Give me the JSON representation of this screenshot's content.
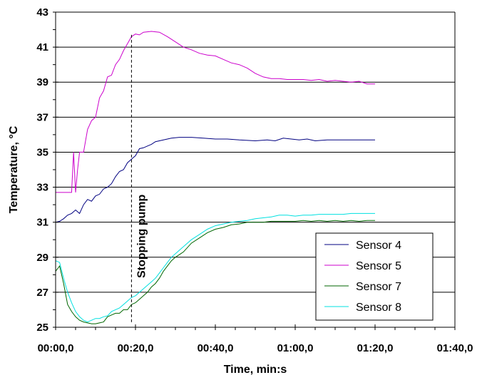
{
  "chart_data": {
    "type": "line",
    "xlabel": "Time, min:s",
    "ylabel": "Temperature, °C",
    "xlim": [
      0,
      100
    ],
    "ylim": [
      25,
      43
    ],
    "x_ticks": [
      0,
      20,
      40,
      60,
      80,
      100
    ],
    "x_tick_labels": [
      "00:00,0",
      "00:20,0",
      "00:40,0",
      "01:00,0",
      "01:20,0",
      "01:40,0"
    ],
    "y_ticks": [
      25,
      27,
      29,
      31,
      33,
      35,
      37,
      39,
      41,
      43
    ],
    "y_tick_labels": [
      "25",
      "27",
      "29",
      "31",
      "33",
      "35",
      "37",
      "39",
      "41",
      "43"
    ],
    "grid": "horizontal",
    "legend_position": "bottom-right",
    "annotation": {
      "text": "Stopping pump",
      "x": 19
    },
    "colors": {
      "sensor4": "#000080",
      "sensor5": "#cc00cc",
      "sensor7": "#006600",
      "sensor8": "#00e0e0"
    },
    "series": [
      {
        "name": "Sensor 4",
        "color": "#000080",
        "points": [
          [
            0,
            31.0
          ],
          [
            1,
            31.05
          ],
          [
            2,
            31.2
          ],
          [
            3,
            31.4
          ],
          [
            4,
            31.5
          ],
          [
            5,
            31.7
          ],
          [
            6,
            31.5
          ],
          [
            7,
            32.0
          ],
          [
            8,
            32.3
          ],
          [
            9,
            32.2
          ],
          [
            10,
            32.5
          ],
          [
            11,
            32.6
          ],
          [
            12,
            32.9
          ],
          [
            13,
            33.0
          ],
          [
            14,
            33.2
          ],
          [
            15,
            33.6
          ],
          [
            16,
            33.9
          ],
          [
            17,
            34.0
          ],
          [
            18,
            34.4
          ],
          [
            19,
            34.6
          ],
          [
            20,
            34.8
          ],
          [
            21,
            35.2
          ],
          [
            22,
            35.25
          ],
          [
            23,
            35.35
          ],
          [
            24,
            35.45
          ],
          [
            25,
            35.6
          ],
          [
            27,
            35.7
          ],
          [
            29,
            35.8
          ],
          [
            31,
            35.85
          ],
          [
            34,
            35.85
          ],
          [
            37,
            35.8
          ],
          [
            40,
            35.75
          ],
          [
            43,
            35.75
          ],
          [
            46,
            35.7
          ],
          [
            50,
            35.65
          ],
          [
            53,
            35.7
          ],
          [
            55,
            35.65
          ],
          [
            57,
            35.8
          ],
          [
            59,
            35.75
          ],
          [
            61,
            35.7
          ],
          [
            63,
            35.75
          ],
          [
            65,
            35.65
          ],
          [
            68,
            35.7
          ],
          [
            72,
            35.7
          ],
          [
            76,
            35.7
          ],
          [
            80,
            35.7
          ]
        ]
      },
      {
        "name": "Sensor 5",
        "color": "#cc00cc",
        "points": [
          [
            0,
            32.7
          ],
          [
            4,
            32.7
          ],
          [
            4.5,
            35.0
          ],
          [
            5,
            32.7
          ],
          [
            5.5,
            34.0
          ],
          [
            6,
            35.0
          ],
          [
            7,
            35.0
          ],
          [
            8,
            36.3
          ],
          [
            9,
            36.8
          ],
          [
            10,
            37.0
          ],
          [
            11,
            38.1
          ],
          [
            12,
            38.5
          ],
          [
            13,
            39.3
          ],
          [
            14,
            39.4
          ],
          [
            15,
            40.0
          ],
          [
            16,
            40.3
          ],
          [
            17,
            40.8
          ],
          [
            18,
            41.2
          ],
          [
            19,
            41.6
          ],
          [
            20,
            41.75
          ],
          [
            21,
            41.7
          ],
          [
            22,
            41.85
          ],
          [
            24,
            41.9
          ],
          [
            26,
            41.85
          ],
          [
            28,
            41.6
          ],
          [
            30,
            41.3
          ],
          [
            32,
            41.0
          ],
          [
            34,
            40.85
          ],
          [
            36,
            40.65
          ],
          [
            38,
            40.55
          ],
          [
            40,
            40.5
          ],
          [
            42,
            40.3
          ],
          [
            44,
            40.1
          ],
          [
            46,
            40.0
          ],
          [
            48,
            39.8
          ],
          [
            50,
            39.5
          ],
          [
            52,
            39.3
          ],
          [
            54,
            39.2
          ],
          [
            56,
            39.2
          ],
          [
            58,
            39.15
          ],
          [
            60,
            39.15
          ],
          [
            62,
            39.15
          ],
          [
            64,
            39.1
          ],
          [
            66,
            39.15
          ],
          [
            68,
            39.05
          ],
          [
            70,
            39.1
          ],
          [
            72,
            39.05
          ],
          [
            74,
            39.0
          ],
          [
            76,
            39.05
          ],
          [
            78,
            38.9
          ],
          [
            80,
            38.9
          ]
        ]
      },
      {
        "name": "Sensor 7",
        "color": "#006600",
        "points": [
          [
            0,
            28.2
          ],
          [
            1,
            28.5
          ],
          [
            2,
            27.5
          ],
          [
            3,
            26.3
          ],
          [
            4,
            25.9
          ],
          [
            5,
            25.6
          ],
          [
            6,
            25.4
          ],
          [
            7,
            25.3
          ],
          [
            8,
            25.25
          ],
          [
            9,
            25.2
          ],
          [
            10,
            25.2
          ],
          [
            11,
            25.25
          ],
          [
            12,
            25.3
          ],
          [
            13,
            25.6
          ],
          [
            14,
            25.7
          ],
          [
            15,
            25.8
          ],
          [
            16,
            25.8
          ],
          [
            17,
            26.0
          ],
          [
            18,
            26.0
          ],
          [
            19,
            26.3
          ],
          [
            20,
            26.4
          ],
          [
            21,
            26.6
          ],
          [
            22,
            26.8
          ],
          [
            23,
            27.0
          ],
          [
            24,
            27.3
          ],
          [
            25,
            27.5
          ],
          [
            26,
            27.8
          ],
          [
            27,
            28.2
          ],
          [
            28,
            28.5
          ],
          [
            29,
            28.8
          ],
          [
            30,
            29.0
          ],
          [
            32,
            29.3
          ],
          [
            34,
            29.8
          ],
          [
            36,
            30.1
          ],
          [
            38,
            30.4
          ],
          [
            40,
            30.6
          ],
          [
            42,
            30.7
          ],
          [
            44,
            30.85
          ],
          [
            46,
            30.9
          ],
          [
            48,
            31.0
          ],
          [
            50,
            31.0
          ],
          [
            52,
            31.0
          ],
          [
            54,
            31.05
          ],
          [
            56,
            31.05
          ],
          [
            58,
            31.05
          ],
          [
            60,
            31.05
          ],
          [
            62,
            31.1
          ],
          [
            64,
            31.05
          ],
          [
            66,
            31.1
          ],
          [
            68,
            31.05
          ],
          [
            70,
            31.1
          ],
          [
            72,
            31.05
          ],
          [
            74,
            31.1
          ],
          [
            76,
            31.05
          ],
          [
            78,
            31.1
          ],
          [
            80,
            31.1
          ]
        ]
      },
      {
        "name": "Sensor 8",
        "color": "#00e0e0",
        "points": [
          [
            0,
            28.8
          ],
          [
            1,
            28.7
          ],
          [
            2,
            27.8
          ],
          [
            3,
            27.0
          ],
          [
            4,
            26.4
          ],
          [
            5,
            25.9
          ],
          [
            6,
            25.6
          ],
          [
            7,
            25.4
          ],
          [
            8,
            25.3
          ],
          [
            9,
            25.4
          ],
          [
            10,
            25.5
          ],
          [
            11,
            25.5
          ],
          [
            12,
            25.6
          ],
          [
            13,
            25.65
          ],
          [
            14,
            25.9
          ],
          [
            15,
            26.0
          ],
          [
            16,
            26.1
          ],
          [
            17,
            26.3
          ],
          [
            18,
            26.5
          ],
          [
            19,
            26.7
          ],
          [
            20,
            26.8
          ],
          [
            21,
            27.0
          ],
          [
            22,
            27.2
          ],
          [
            23,
            27.4
          ],
          [
            24,
            27.6
          ],
          [
            25,
            27.8
          ],
          [
            26,
            28.1
          ],
          [
            27,
            28.4
          ],
          [
            28,
            28.7
          ],
          [
            29,
            29.0
          ],
          [
            30,
            29.2
          ],
          [
            32,
            29.6
          ],
          [
            34,
            30.0
          ],
          [
            36,
            30.3
          ],
          [
            38,
            30.6
          ],
          [
            40,
            30.8
          ],
          [
            42,
            30.9
          ],
          [
            44,
            31.0
          ],
          [
            46,
            31.05
          ],
          [
            48,
            31.1
          ],
          [
            50,
            31.2
          ],
          [
            52,
            31.25
          ],
          [
            54,
            31.3
          ],
          [
            56,
            31.4
          ],
          [
            58,
            31.4
          ],
          [
            60,
            31.35
          ],
          [
            62,
            31.4
          ],
          [
            64,
            31.4
          ],
          [
            66,
            31.45
          ],
          [
            68,
            31.45
          ],
          [
            70,
            31.45
          ],
          [
            72,
            31.45
          ],
          [
            74,
            31.5
          ],
          [
            76,
            31.5
          ],
          [
            78,
            31.5
          ],
          [
            80,
            31.5
          ]
        ]
      }
    ]
  }
}
